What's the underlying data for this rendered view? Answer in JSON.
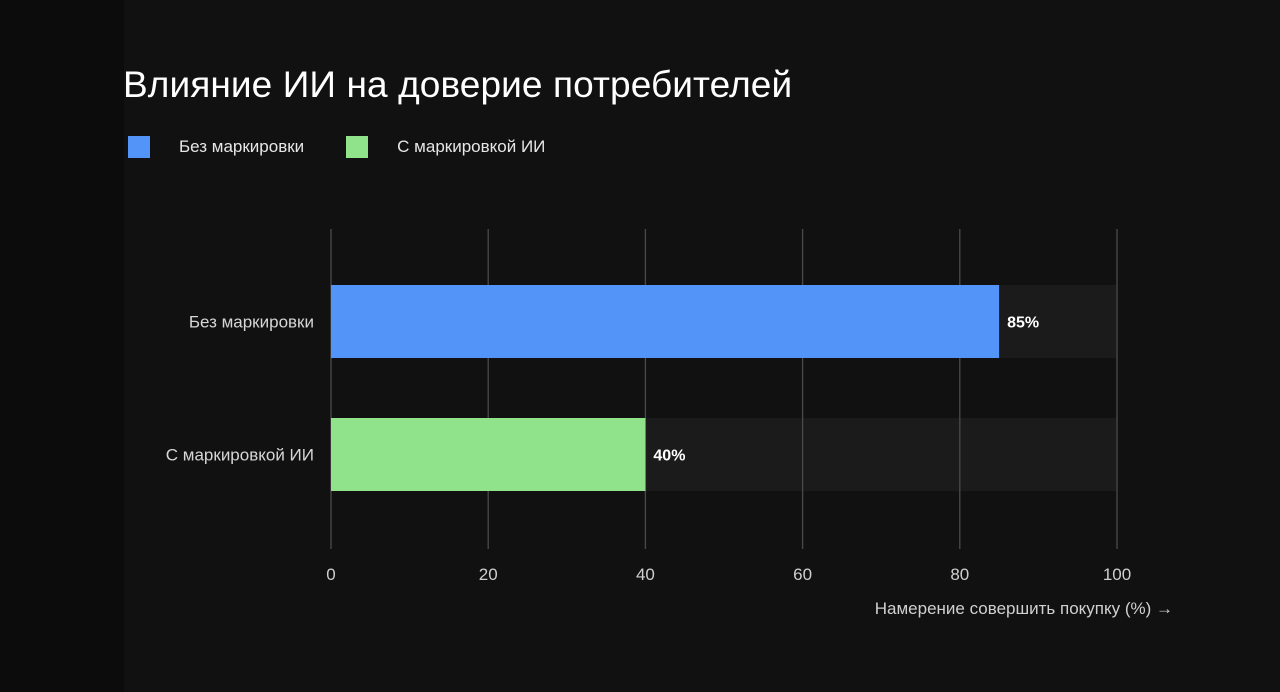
{
  "chart_data": {
    "type": "bar",
    "orientation": "horizontal",
    "title": "Влияние ИИ на доверие потребителей",
    "categories": [
      "Без маркировки",
      "С маркировкой ИИ"
    ],
    "values": [
      85,
      40
    ],
    "value_labels": [
      "85%",
      "40%"
    ],
    "colors": [
      "#5294f7",
      "#90e38a"
    ],
    "legend": [
      {
        "label": "Без маркировки",
        "color": "#5294f7"
      },
      {
        "label": "С маркировкой ИИ",
        "color": "#90e38a"
      }
    ],
    "legend_position": "top-left",
    "xlabel": "Намерение совершить покупку (%) →",
    "ylabel": "",
    "xlim": [
      0,
      100
    ],
    "xticks": [
      0,
      20,
      40,
      60,
      80,
      100
    ],
    "grid": true,
    "track_color": "#1b1b1b"
  }
}
